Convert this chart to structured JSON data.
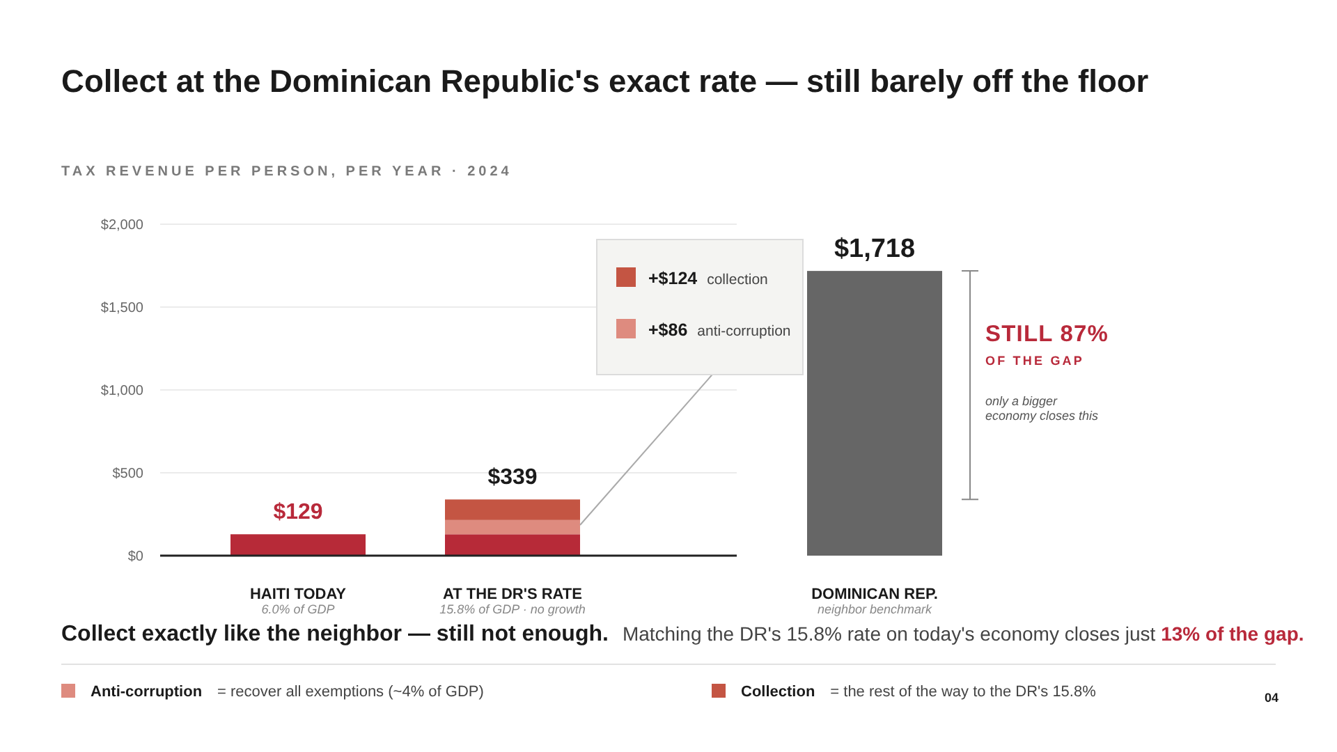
{
  "chart_data": {
    "type": "bar",
    "title": "Collect at the Dominican Republic's exact rate — still barely off the floor",
    "subtitle": "TAX REVENUE PER PERSON, PER YEAR · 2024",
    "categories": [
      "HAITI TODAY",
      "AT THE DR'S RATE",
      "DOMINICAN REP."
    ],
    "series": [
      {
        "color": "#b72a38",
        "values": [
          129,
          129,
          null
        ]
      },
      {
        "name": "Anti-corruption",
        "color": "#de8b7f",
        "values": [
          null,
          86,
          null
        ]
      },
      {
        "name": "Collection",
        "color": "#c45543",
        "values": [
          null,
          124,
          null
        ]
      },
      {
        "color": "#666666",
        "values": [
          null,
          null,
          1718
        ]
      }
    ],
    "stacked": true,
    "totals": [
      "$129",
      "$339",
      "$1,718"
    ],
    "ylim": [
      0,
      2000
    ],
    "yticks": [
      {
        "value": 0,
        "label": "$0"
      },
      {
        "value": 500,
        "label": "$500"
      },
      {
        "value": 1000,
        "label": "$1,000"
      },
      {
        "value": 1500,
        "label": "$1,500"
      },
      {
        "value": 2000,
        "label": "$2,000"
      }
    ],
    "grid": "y",
    "legend": "bottom",
    "annotations": [
      "6.0% of GDP",
      "15.8% of GDP · no growth",
      "neighbor benchmark",
      "STILL 87%",
      "OF THE GAP",
      "only a bigger economy closes this",
      "Collect exactly like the neighbor — still not enough.",
      "Matching the DR's 15.8% rate on today's economy closes just",
      "13% of the gap.",
      "= recover all exemptions (~4% of GDP)",
      "= the rest of the way to the DR's 15.8%",
      "04",
      "+$124 collection",
      "+$86 anti-corruption"
    ]
  }
}
